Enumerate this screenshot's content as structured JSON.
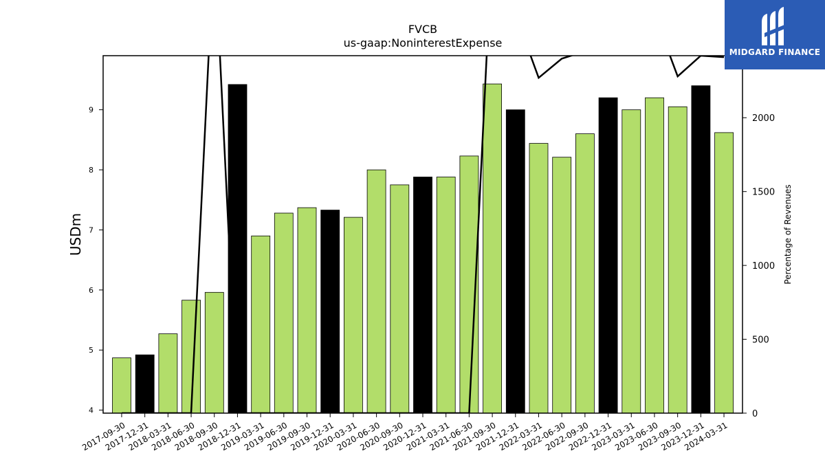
{
  "chart_data": {
    "type": "bar",
    "title": "FVCB",
    "subtitle": "us-gaap:NoninterestExpense",
    "ylabel": "USDm",
    "y2label": "Percentage of Revenues",
    "ylim": [
      3.95,
      9.9
    ],
    "y2lim": [
      0,
      2420
    ],
    "yticks": [
      4,
      5,
      6,
      7,
      8,
      9
    ],
    "y2ticks": [
      0,
      500,
      1000,
      1500,
      2000
    ],
    "categories": [
      "2017-09-30",
      "2017-12-31",
      "2018-03-31",
      "2018-06-30",
      "2018-09-30",
      "2018-12-31",
      "2019-03-31",
      "2019-06-30",
      "2019-09-30",
      "2019-12-31",
      "2020-03-31",
      "2020-06-30",
      "2020-09-30",
      "2020-12-31",
      "2021-03-31",
      "2021-06-30",
      "2021-09-30",
      "2021-12-31",
      "2022-03-31",
      "2022-06-30",
      "2022-09-30",
      "2022-12-31",
      "2023-03-31",
      "2023-06-30",
      "2023-09-30",
      "2023-12-31",
      "2024-03-31"
    ],
    "values": [
      4.87,
      4.92,
      5.27,
      5.83,
      5.96,
      9.42,
      6.9,
      7.28,
      7.37,
      7.33,
      7.21,
      8.0,
      7.75,
      7.88,
      7.88,
      8.23,
      9.43,
      9.0,
      8.44,
      8.21,
      8.6,
      9.2,
      9.0,
      9.2,
      9.05,
      9.4,
      8.62
    ],
    "highlight": [
      false,
      true,
      false,
      false,
      false,
      true,
      false,
      false,
      false,
      true,
      false,
      false,
      false,
      true,
      false,
      false,
      false,
      true,
      false,
      false,
      false,
      true,
      false,
      false,
      false,
      true,
      false
    ],
    "line_values": [
      0,
      0,
      0,
      0,
      3200,
      0,
      0,
      0,
      0,
      0,
      0,
      0,
      0,
      0,
      0,
      0,
      3200,
      2700,
      2270,
      2400,
      2450,
      2600,
      2650,
      2700,
      2280,
      2420,
      2410
    ],
    "colors": {
      "bar": "#b2dd6a",
      "highlight_bar": "#000000",
      "line": "#000000"
    }
  },
  "brand": {
    "name": "MIDGARD FINANCE",
    "color": "#2b5cb5"
  }
}
